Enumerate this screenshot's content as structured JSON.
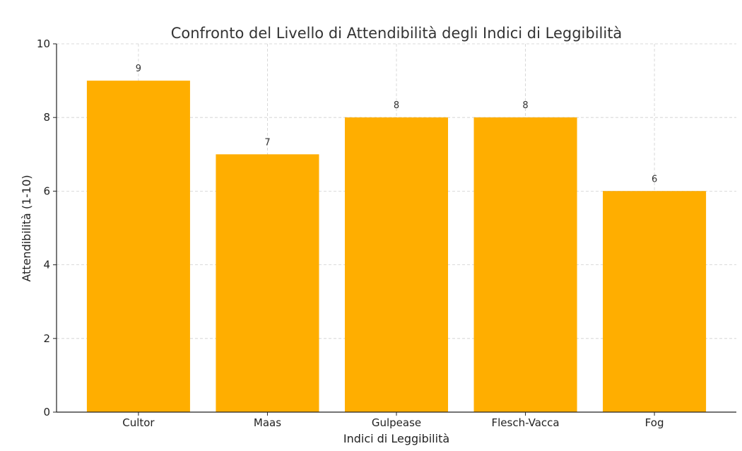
{
  "chart_data": {
    "type": "bar",
    "title": "Confronto del Livello di Attendibilità degli Indici di Leggibilità",
    "xlabel": "Indici di Leggibilità",
    "ylabel": "Attendibilità (1-10)",
    "categories": [
      "Cultor",
      "Maas",
      "Gulpease",
      "Flesch-Vacca",
      "Fog"
    ],
    "values": [
      9,
      7,
      8,
      8,
      6
    ],
    "data_labels": [
      "9",
      "7",
      "8",
      "8",
      "6"
    ],
    "ylim": [
      0,
      10
    ],
    "yticks": [
      0,
      2,
      4,
      6,
      8,
      10
    ],
    "grid": true,
    "bar_color": "#FFAE00"
  }
}
